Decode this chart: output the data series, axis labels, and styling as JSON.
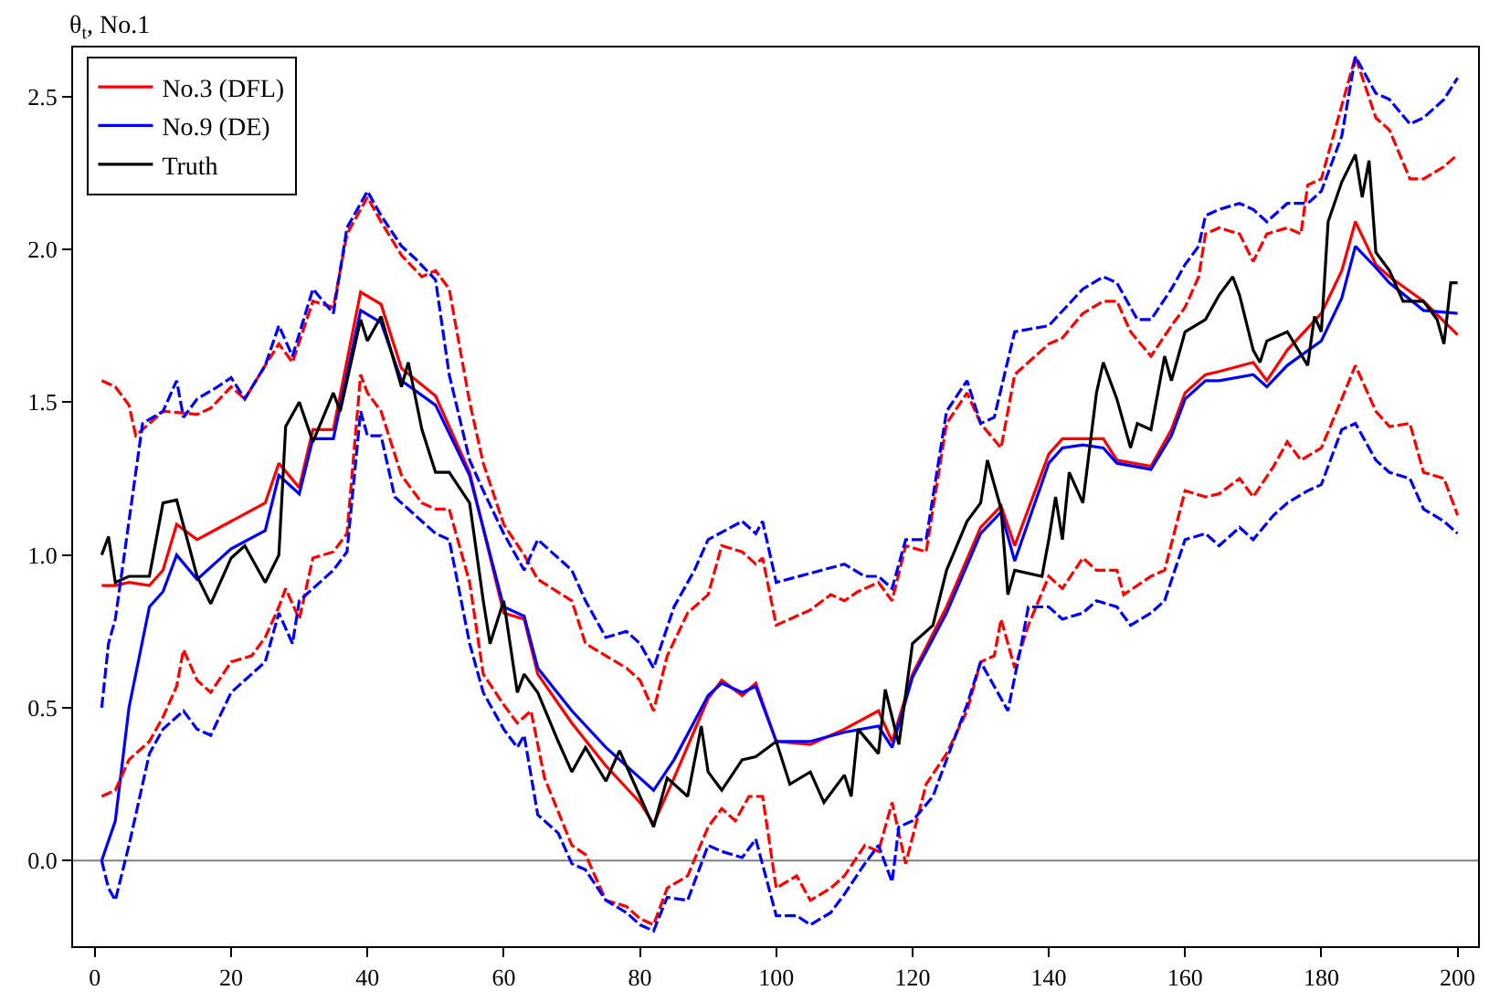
{
  "chart_data": {
    "type": "line",
    "ylabel": "θ$_{t}$, No.1",
    "xlim": [
      -3.2,
      203
    ],
    "ylim": [
      -0.28,
      2.66
    ],
    "xticks": [
      0,
      20,
      40,
      60,
      80,
      100,
      120,
      140,
      160,
      180,
      200
    ],
    "yticks": [
      {
        "value": 0,
        "label": "0.0"
      },
      {
        "value": 0.5,
        "label": "0.5"
      },
      {
        "value": 1,
        "label": "1.0"
      },
      {
        "value": 1.5,
        "label": "1.5"
      },
      {
        "value": 2,
        "label": "2.0"
      },
      {
        "value": 2.5,
        "label": "2.5"
      }
    ],
    "grid": false,
    "legend": "top left",
    "marker": "none",
    "ref_lines": [
      {
        "axis": "y",
        "value": 0,
        "color": "#808080",
        "line_style": "solid"
      }
    ],
    "series": [
      {
        "name": "No.3 (DFL)",
        "color": "#ff0000",
        "line_style": "solid",
        "x": [
          1,
          3,
          5,
          8,
          10,
          12,
          15,
          20,
          25,
          27,
          30,
          32,
          35,
          39,
          42,
          45,
          50,
          55,
          60,
          63,
          65,
          70,
          75,
          80,
          82,
          85,
          90,
          92,
          95,
          97,
          100,
          105,
          110,
          115,
          117,
          120,
          125,
          130,
          133,
          135,
          140,
          142,
          145,
          148,
          150,
          155,
          158,
          160,
          163,
          165,
          170,
          172,
          175,
          180,
          183,
          185,
          188,
          190,
          195,
          200
        ],
        "values": [
          0.9,
          0.9,
          0.91,
          0.9,
          0.95,
          1.1,
          1.05,
          1.11,
          1.17,
          1.3,
          1.22,
          1.41,
          1.41,
          1.86,
          1.82,
          1.61,
          1.52,
          1.27,
          0.81,
          0.79,
          0.61,
          0.45,
          0.31,
          0.19,
          0.12,
          0.27,
          0.53,
          0.59,
          0.54,
          0.58,
          0.39,
          0.38,
          0.43,
          0.49,
          0.39,
          0.61,
          0.83,
          1.09,
          1.16,
          1.03,
          1.33,
          1.38,
          1.38,
          1.38,
          1.31,
          1.29,
          1.41,
          1.53,
          1.59,
          1.6,
          1.63,
          1.57,
          1.67,
          1.79,
          1.93,
          2.09,
          1.95,
          1.91,
          1.83,
          1.72
        ]
      },
      {
        "name": "No.9 (DE)",
        "color": "#0000ff",
        "line_style": "solid",
        "x": [
          1,
          3,
          5,
          8,
          10,
          12,
          15,
          20,
          25,
          27,
          30,
          32,
          35,
          39,
          42,
          45,
          50,
          55,
          60,
          63,
          65,
          70,
          75,
          80,
          82,
          85,
          90,
          92,
          95,
          97,
          100,
          105,
          110,
          115,
          117,
          120,
          125,
          130,
          133,
          135,
          140,
          142,
          145,
          148,
          150,
          155,
          158,
          160,
          163,
          165,
          170,
          172,
          175,
          180,
          183,
          185,
          188,
          190,
          195,
          200
        ],
        "values": [
          0.0,
          0.13,
          0.5,
          0.83,
          0.88,
          1.0,
          0.92,
          1.02,
          1.08,
          1.26,
          1.2,
          1.38,
          1.38,
          1.8,
          1.76,
          1.57,
          1.49,
          1.26,
          0.83,
          0.8,
          0.63,
          0.49,
          0.37,
          0.27,
          0.23,
          0.33,
          0.54,
          0.58,
          0.55,
          0.57,
          0.39,
          0.39,
          0.42,
          0.44,
          0.37,
          0.6,
          0.81,
          1.07,
          1.14,
          0.98,
          1.3,
          1.35,
          1.36,
          1.35,
          1.3,
          1.28,
          1.39,
          1.51,
          1.57,
          1.57,
          1.59,
          1.55,
          1.62,
          1.7,
          1.84,
          2.01,
          1.94,
          1.89,
          1.8,
          1.79
        ]
      },
      {
        "name": "Truth",
        "color": "#000000",
        "line_style": "solid",
        "x": [
          1,
          2,
          3,
          5,
          8,
          10,
          12,
          15,
          17,
          20,
          22,
          25,
          27,
          28,
          30,
          32,
          35,
          36,
          39,
          40,
          42,
          45,
          46,
          48,
          50,
          52,
          55,
          57,
          58,
          60,
          62,
          63,
          65,
          68,
          70,
          72,
          75,
          77,
          80,
          82,
          84,
          87,
          89,
          90,
          92,
          95,
          97,
          100,
          102,
          105,
          107,
          110,
          111,
          112,
          115,
          116,
          118,
          120,
          123,
          125,
          128,
          130,
          131,
          133,
          134,
          135,
          139,
          140,
          141,
          142,
          143,
          145,
          147,
          148,
          150,
          152,
          153,
          155,
          157,
          158,
          160,
          163,
          165,
          167,
          168,
          170,
          171,
          172,
          175,
          178,
          179,
          180,
          181,
          183,
          185,
          186,
          187,
          188,
          190,
          192,
          195,
          197,
          198,
          199,
          200
        ],
        "values": [
          1.0,
          1.06,
          0.91,
          0.93,
          0.93,
          1.17,
          1.18,
          0.93,
          0.84,
          0.99,
          1.03,
          0.91,
          1.0,
          1.42,
          1.5,
          1.37,
          1.53,
          1.47,
          1.77,
          1.7,
          1.78,
          1.55,
          1.63,
          1.41,
          1.27,
          1.27,
          1.17,
          0.85,
          0.71,
          0.85,
          0.55,
          0.61,
          0.55,
          0.39,
          0.29,
          0.37,
          0.26,
          0.36,
          0.21,
          0.11,
          0.27,
          0.21,
          0.44,
          0.29,
          0.23,
          0.33,
          0.34,
          0.39,
          0.25,
          0.29,
          0.19,
          0.28,
          0.21,
          0.43,
          0.35,
          0.56,
          0.38,
          0.71,
          0.77,
          0.95,
          1.11,
          1.17,
          1.31,
          1.15,
          0.87,
          0.95,
          0.93,
          1.05,
          1.19,
          1.05,
          1.27,
          1.17,
          1.53,
          1.63,
          1.51,
          1.35,
          1.43,
          1.41,
          1.65,
          1.57,
          1.73,
          1.77,
          1.85,
          1.91,
          1.85,
          1.67,
          1.63,
          1.7,
          1.73,
          1.62,
          1.78,
          1.73,
          2.09,
          2.22,
          2.31,
          2.17,
          2.29,
          1.99,
          1.93,
          1.83,
          1.83,
          1.77,
          1.69,
          1.89,
          1.89
        ]
      },
      {
        "color": "#ff0000",
        "line_style": "dashed",
        "x": [
          1,
          3,
          5,
          6,
          8,
          10,
          15,
          17,
          20,
          22,
          25,
          27,
          29,
          32,
          35,
          37,
          40,
          42,
          45,
          48,
          50,
          52,
          55,
          57,
          60,
          63,
          65,
          70,
          72,
          75,
          78,
          80,
          82,
          84,
          87,
          90,
          92,
          95,
          97,
          98,
          100,
          105,
          108,
          110,
          112,
          115,
          117,
          119,
          122,
          125,
          128,
          130,
          133,
          135,
          140,
          142,
          145,
          148,
          150,
          152,
          155,
          158,
          160,
          162,
          163,
          165,
          168,
          170,
          172,
          175,
          177,
          178,
          180,
          183,
          185,
          188,
          190,
          193,
          195,
          198,
          200
        ],
        "values": [
          1.57,
          1.55,
          1.49,
          1.39,
          1.43,
          1.47,
          1.46,
          1.48,
          1.55,
          1.51,
          1.62,
          1.69,
          1.63,
          1.83,
          1.81,
          2.05,
          2.17,
          2.09,
          1.98,
          1.91,
          1.93,
          1.87,
          1.5,
          1.3,
          1.1,
          1.0,
          0.92,
          0.85,
          0.71,
          0.67,
          0.63,
          0.59,
          0.49,
          0.67,
          0.81,
          0.87,
          1.03,
          1.01,
          0.97,
          0.99,
          0.77,
          0.82,
          0.87,
          0.85,
          0.88,
          0.91,
          0.85,
          1.03,
          1.01,
          1.43,
          1.53,
          1.43,
          1.35,
          1.59,
          1.69,
          1.71,
          1.79,
          1.83,
          1.83,
          1.73,
          1.65,
          1.75,
          1.81,
          1.91,
          2.05,
          2.07,
          2.05,
          1.96,
          2.05,
          2.07,
          2.05,
          2.21,
          2.23,
          2.47,
          2.63,
          2.43,
          2.39,
          2.23,
          2.23,
          2.27,
          2.31
        ]
      },
      {
        "color": "#0000ff",
        "line_style": "dashed",
        "x": [
          1,
          2,
          3,
          5,
          7,
          10,
          12,
          13,
          15,
          18,
          20,
          22,
          25,
          27,
          29,
          32,
          35,
          37,
          40,
          42,
          45,
          47,
          50,
          52,
          55,
          57,
          60,
          63,
          65,
          70,
          72,
          75,
          78,
          80,
          82,
          85,
          88,
          90,
          95,
          97,
          98,
          100,
          105,
          110,
          113,
          115,
          117,
          119,
          122,
          125,
          128,
          130,
          132,
          135,
          140,
          145,
          148,
          150,
          153,
          155,
          158,
          160,
          162,
          163,
          165,
          168,
          170,
          172,
          175,
          178,
          180,
          183,
          185,
          188,
          190,
          193,
          195,
          198,
          200
        ],
        "values": [
          0.5,
          0.71,
          0.79,
          1.11,
          1.43,
          1.47,
          1.57,
          1.45,
          1.51,
          1.55,
          1.58,
          1.51,
          1.62,
          1.75,
          1.65,
          1.87,
          1.79,
          2.07,
          2.19,
          2.11,
          2.01,
          1.97,
          1.9,
          1.59,
          1.31,
          1.21,
          1.07,
          0.95,
          1.05,
          0.95,
          0.85,
          0.73,
          0.75,
          0.71,
          0.63,
          0.83,
          0.95,
          1.05,
          1.11,
          1.07,
          1.11,
          0.91,
          0.94,
          0.97,
          0.93,
          0.93,
          0.89,
          1.05,
          1.05,
          1.47,
          1.57,
          1.43,
          1.45,
          1.73,
          1.75,
          1.87,
          1.91,
          1.89,
          1.77,
          1.77,
          1.87,
          1.95,
          2.01,
          2.11,
          2.13,
          2.15,
          2.13,
          2.09,
          2.15,
          2.15,
          2.19,
          2.37,
          2.63,
          2.51,
          2.49,
          2.41,
          2.43,
          2.49,
          2.56
        ]
      },
      {
        "color": "#ff0000",
        "line_style": "dashed",
        "x": [
          1,
          3,
          5,
          8,
          10,
          12,
          13,
          15,
          17,
          20,
          23,
          25,
          27,
          28,
          30,
          32,
          35,
          37,
          39,
          40,
          42,
          45,
          48,
          50,
          52,
          55,
          57,
          60,
          62,
          64,
          66,
          70,
          72,
          75,
          78,
          80,
          82,
          84,
          87,
          90,
          92,
          94,
          96,
          98,
          100,
          103,
          105,
          108,
          110,
          113,
          115,
          117,
          119,
          122,
          125,
          128,
          130,
          132,
          133,
          135,
          137,
          140,
          142,
          145,
          147,
          150,
          151,
          155,
          157,
          160,
          163,
          165,
          168,
          170,
          173,
          175,
          177,
          180,
          183,
          185,
          188,
          190,
          193,
          195,
          198,
          200
        ],
        "values": [
          0.21,
          0.23,
          0.33,
          0.39,
          0.47,
          0.57,
          0.69,
          0.59,
          0.55,
          0.65,
          0.67,
          0.73,
          0.83,
          0.89,
          0.79,
          0.99,
          1.01,
          1.07,
          1.59,
          1.53,
          1.47,
          1.26,
          1.17,
          1.15,
          1.15,
          0.91,
          0.61,
          0.51,
          0.45,
          0.49,
          0.27,
          0.05,
          0.02,
          -0.13,
          -0.15,
          -0.19,
          -0.21,
          -0.09,
          -0.05,
          0.11,
          0.17,
          0.13,
          0.21,
          0.21,
          -0.09,
          -0.05,
          -0.13,
          -0.09,
          -0.05,
          0.05,
          0.03,
          0.19,
          -0.01,
          0.25,
          0.35,
          0.49,
          0.65,
          0.67,
          0.79,
          0.63,
          0.77,
          0.93,
          0.89,
          0.99,
          0.95,
          0.95,
          0.87,
          0.93,
          0.95,
          1.21,
          1.19,
          1.2,
          1.25,
          1.19,
          1.29,
          1.37,
          1.31,
          1.35,
          1.51,
          1.62,
          1.47,
          1.42,
          1.43,
          1.27,
          1.25,
          1.13
        ]
      },
      {
        "color": "#0000ff",
        "line_style": "dashed",
        "x": [
          1,
          2,
          3,
          5,
          8,
          10,
          13,
          15,
          17,
          20,
          23,
          25,
          27,
          29,
          30,
          32,
          35,
          37,
          39,
          40,
          42,
          44,
          47,
          50,
          52,
          55,
          57,
          60,
          62,
          63,
          65,
          68,
          70,
          72,
          75,
          78,
          80,
          82,
          84,
          87,
          90,
          92,
          95,
          97,
          100,
          103,
          105,
          108,
          110,
          113,
          115,
          117,
          118,
          120,
          123,
          125,
          128,
          130,
          132,
          134,
          136,
          137,
          140,
          142,
          145,
          147,
          150,
          152,
          155,
          157,
          160,
          163,
          165,
          168,
          170,
          173,
          175,
          178,
          180,
          183,
          185,
          188,
          190,
          193,
          195,
          198,
          200
        ],
        "values": [
          0.0,
          -0.09,
          -0.13,
          0.05,
          0.35,
          0.43,
          0.49,
          0.43,
          0.41,
          0.55,
          0.61,
          0.65,
          0.81,
          0.71,
          0.85,
          0.89,
          0.95,
          1.01,
          1.47,
          1.39,
          1.39,
          1.19,
          1.13,
          1.07,
          1.05,
          0.71,
          0.55,
          0.43,
          0.37,
          0.41,
          0.15,
          0.09,
          -0.01,
          -0.03,
          -0.13,
          -0.17,
          -0.21,
          -0.23,
          -0.12,
          -0.13,
          0.05,
          0.03,
          0.01,
          0.07,
          -0.18,
          -0.18,
          -0.21,
          -0.17,
          -0.11,
          -0.01,
          0.05,
          -0.07,
          0.11,
          0.13,
          0.21,
          0.33,
          0.51,
          0.65,
          0.57,
          0.49,
          0.71,
          0.83,
          0.83,
          0.79,
          0.81,
          0.85,
          0.83,
          0.77,
          0.81,
          0.85,
          1.05,
          1.07,
          1.03,
          1.09,
          1.05,
          1.13,
          1.17,
          1.21,
          1.23,
          1.41,
          1.43,
          1.31,
          1.27,
          1.25,
          1.15,
          1.11,
          1.07
        ]
      }
    ]
  }
}
